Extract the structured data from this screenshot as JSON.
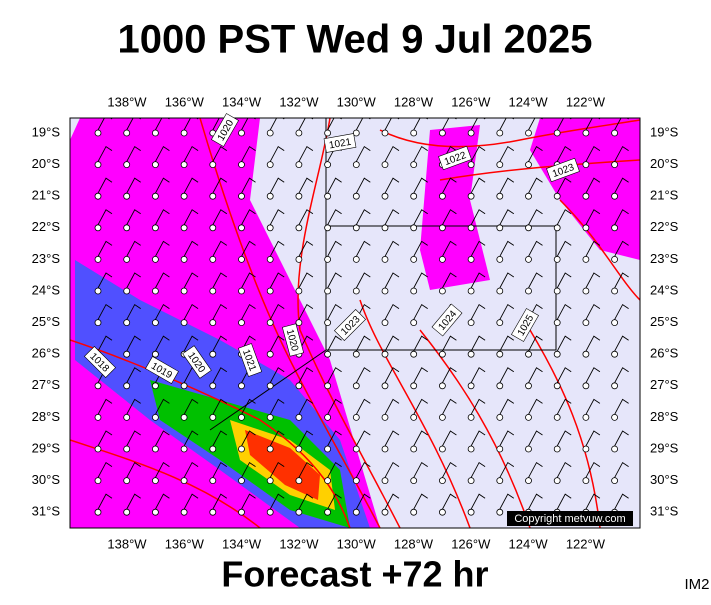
{
  "header": {
    "title": "1000 PST Wed 9 Jul 2025"
  },
  "map": {
    "lon_labels": [
      "138°W",
      "136°W",
      "134°W",
      "132°W",
      "130°W",
      "128°W",
      "126°W",
      "124°W",
      "122°W"
    ],
    "lat_labels": [
      "19°S",
      "20°S",
      "21°S",
      "22°S",
      "23°S",
      "24°S",
      "25°S",
      "26°S",
      "27°S",
      "28°S",
      "29°S",
      "30°S",
      "31°S"
    ],
    "isobar_labels": [
      "1020",
      "1021",
      "1022",
      "1023",
      "1018",
      "1019",
      "1020",
      "1021",
      "1020",
      "1023",
      "1024",
      "1025"
    ],
    "copyright": "Copyright metvuw.com"
  },
  "footer": {
    "text": "Forecast +72 hr",
    "code": "IM2"
  }
}
